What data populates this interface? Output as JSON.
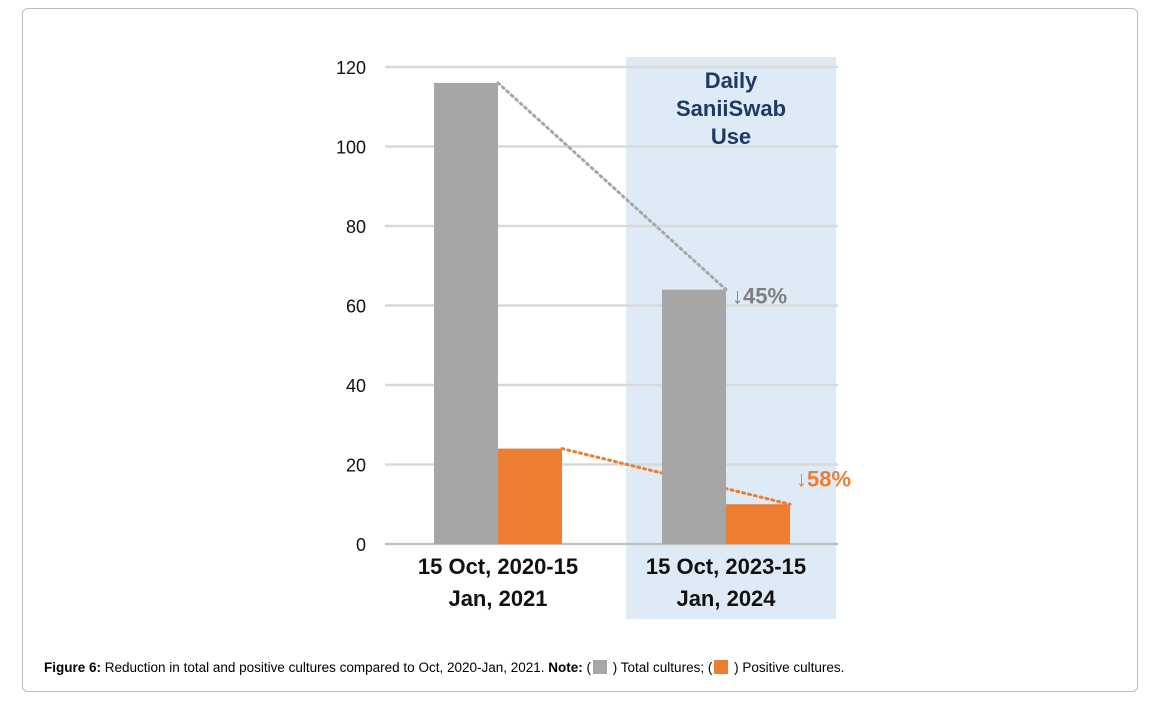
{
  "chart_data": {
    "type": "bar",
    "categories": [
      "15 Oct, 2020-15 Jan, 2021",
      "15 Oct, 2023-15 Jan, 2024"
    ],
    "category_lines": [
      [
        "15 Oct, 2020-15",
        "Jan, 2021"
      ],
      [
        "15 Oct, 2023-15",
        "Jan, 2024"
      ]
    ],
    "series": [
      {
        "name": "Total cultures",
        "color": "#a6a6a6",
        "values": [
          116,
          64
        ]
      },
      {
        "name": "Positive cultures",
        "color": "#ed7d31",
        "values": [
          24,
          10
        ]
      }
    ],
    "ylim": [
      0,
      120
    ],
    "yticks": [
      0,
      20,
      40,
      60,
      80,
      100,
      120
    ],
    "grid": true,
    "highlight_band": {
      "category_index": 1,
      "color": "#deebf7",
      "label_lines": [
        "Daily",
        "SaniiSwab",
        "Use"
      ],
      "label_color": "#1f3864"
    },
    "annotations": [
      {
        "series_index": 0,
        "text": "45%",
        "arrow": "↓",
        "color": "#7f7f7f"
      },
      {
        "series_index": 1,
        "text": "58%",
        "arrow": "↓",
        "color": "#ed7d31"
      }
    ]
  },
  "caption": {
    "figure_label": "Figure 6:",
    "text": " Reduction in total and positive cultures compared to Oct, 2020-Jan, 2021. ",
    "note_label": "Note:",
    "open1": " (",
    "legend1_text": " ) Total cultures; (",
    "legend2_text": " ) Positive cultures.",
    "swatch1_color": "#a6a6a6",
    "swatch2_color": "#ed7d31"
  }
}
